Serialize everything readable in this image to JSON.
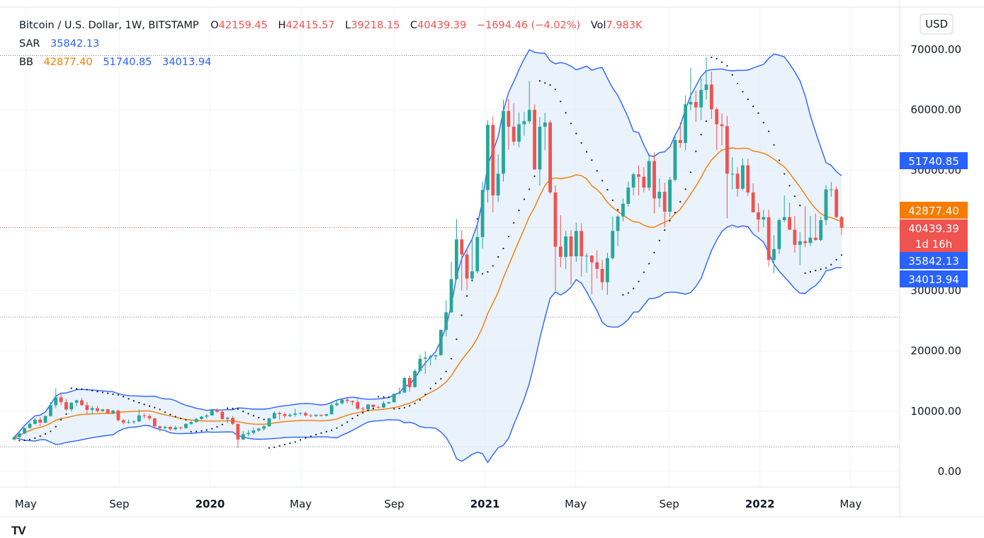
{
  "chart_data": {
    "type": "candlestick",
    "title": "Bitcoin / U.S. Dollar, 1W, BITSTAMP",
    "currency_button": "USD",
    "ohlc_header": {
      "o_label": "O",
      "o": "42159.45",
      "h_label": "H",
      "h": "42415.57",
      "l_label": "L",
      "l": "39218.15",
      "c_label": "C",
      "c": "40439.39",
      "change": "−1694.46 (−4.02%)",
      "vol_label": "Vol",
      "vol": "7.983K"
    },
    "indicators": {
      "sar": {
        "label": "SAR",
        "value": "35842.13"
      },
      "bb": {
        "label": "BB",
        "basis": "42877.40",
        "upper": "51740.85",
        "lower": "34013.94"
      }
    },
    "y_axis": {
      "min": -3000,
      "max": 76000,
      "ticks": [
        0,
        10000,
        20000,
        30000,
        40000,
        50000,
        60000,
        70000
      ],
      "tick_labels": [
        "0.00",
        "10000.00",
        "20000.00",
        "30000.00",
        "40000.00",
        "50000.00",
        "60000.00",
        "70000.00"
      ]
    },
    "x_axis": {
      "start": 2019.28,
      "end": 2022.4,
      "ticks": [
        {
          "x": 2019.33,
          "label": "May",
          "bold": false
        },
        {
          "x": 2019.67,
          "label": "Sep",
          "bold": false
        },
        {
          "x": 2020.0,
          "label": "2020",
          "bold": true
        },
        {
          "x": 2020.33,
          "label": "May",
          "bold": false
        },
        {
          "x": 2020.67,
          "label": "Sep",
          "bold": false
        },
        {
          "x": 2021.0,
          "label": "2021",
          "bold": true
        },
        {
          "x": 2021.33,
          "label": "May",
          "bold": false
        },
        {
          "x": 2021.67,
          "label": "Sep",
          "bold": false
        },
        {
          "x": 2022.0,
          "label": "2022",
          "bold": true
        },
        {
          "x": 2022.33,
          "label": "May",
          "bold": false
        }
      ]
    },
    "price_tags": [
      {
        "value": 51740.85,
        "label": "51740.85",
        "sub": "",
        "color": "#2962ff"
      },
      {
        "value": 42877.4,
        "label": "42877.40",
        "sub": "",
        "color": "#f57c00"
      },
      {
        "value": 40439.39,
        "label": "40439.39",
        "sub": "1d 16h",
        "color": "#ef5350"
      },
      {
        "value": 35842.13,
        "label": "35842.13",
        "sub": "",
        "color": "#2962ff"
      },
      {
        "value": 34013.94,
        "label": "34013.94",
        "sub": "",
        "color": "#2962ff"
      }
    ],
    "reference_lines": [
      {
        "value": 69000,
        "color": "#787b86"
      },
      {
        "value": 40439.39,
        "color": "#ef5350"
      },
      {
        "value": 25600,
        "color": "#787b86"
      },
      {
        "value": 4100,
        "color": "#787b86"
      }
    ],
    "colors": {
      "up": "#26a69a",
      "down": "#ef5350",
      "bb_basis": "#f57c00",
      "bb_band": "#2962ff",
      "bb_fill": "#e3eef9",
      "sar": "#131722",
      "grid": "#f0f3fa",
      "price_line": "#ef5350"
    },
    "candles_weekly": [
      [
        5300,
        5800,
        5100,
        5700
      ],
      [
        5700,
        6400,
        5600,
        6300
      ],
      [
        6300,
        7300,
        6200,
        7200
      ],
      [
        7200,
        8200,
        7100,
        7900
      ],
      [
        7900,
        8800,
        7800,
        8600
      ],
      [
        8600,
        9000,
        7500,
        8100
      ],
      [
        8100,
        9300,
        8000,
        9200
      ],
      [
        9200,
        11500,
        9100,
        11000
      ],
      [
        11000,
        13800,
        10500,
        12300
      ],
      [
        12300,
        13000,
        11000,
        11500
      ],
      [
        11500,
        12000,
        10000,
        10300
      ],
      [
        10300,
        11500,
        10000,
        11400
      ],
      [
        11400,
        11900,
        10800,
        11800
      ],
      [
        11800,
        12200,
        10900,
        11000
      ],
      [
        11000,
        11500,
        9500,
        10200
      ],
      [
        10200,
        10900,
        9500,
        10500
      ],
      [
        10500,
        10900,
        9800,
        10000
      ],
      [
        10000,
        10400,
        9900,
        10300
      ],
      [
        10300,
        10400,
        9600,
        9700
      ],
      [
        9700,
        10200,
        9500,
        10100
      ],
      [
        10100,
        10300,
        8300,
        8500
      ],
      [
        8500,
        8700,
        7800,
        8100
      ],
      [
        8100,
        8600,
        7900,
        8200
      ],
      [
        8200,
        8500,
        7900,
        8300
      ],
      [
        8300,
        10300,
        8200,
        9300
      ],
      [
        9300,
        9600,
        8800,
        9200
      ],
      [
        9200,
        9500,
        8500,
        8800
      ],
      [
        8800,
        8900,
        7300,
        7500
      ],
      [
        7500,
        7600,
        6600,
        7200
      ],
      [
        7200,
        7600,
        7000,
        7400
      ],
      [
        7400,
        7500,
        6800,
        7000
      ],
      [
        7000,
        7600,
        6800,
        7300
      ],
      [
        7300,
        7500,
        6900,
        7200
      ],
      [
        7200,
        8000,
        7100,
        7900
      ],
      [
        7900,
        8400,
        7700,
        8200
      ],
      [
        8200,
        8900,
        8100,
        8700
      ],
      [
        8700,
        9200,
        8600,
        9100
      ],
      [
        9100,
        9500,
        8800,
        9300
      ],
      [
        9300,
        10400,
        9200,
        10200
      ],
      [
        10200,
        10500,
        9700,
        9900
      ],
      [
        9900,
        10200,
        8600,
        8700
      ],
      [
        8700,
        9100,
        8000,
        8900
      ],
      [
        8900,
        9200,
        7700,
        7900
      ],
      [
        7900,
        8000,
        3900,
        5300
      ],
      [
        5300,
        6700,
        5200,
        6200
      ],
      [
        6200,
        6900,
        5800,
        6400
      ],
      [
        6400,
        7300,
        6100,
        6800
      ],
      [
        6800,
        7300,
        6600,
        7100
      ],
      [
        7100,
        7700,
        6800,
        7500
      ],
      [
        7500,
        8900,
        7400,
        8800
      ],
      [
        8800,
        10000,
        8700,
        9700
      ],
      [
        9700,
        9900,
        8600,
        9500
      ],
      [
        9500,
        9800,
        8800,
        9200
      ],
      [
        9200,
        9700,
        9000,
        9400
      ],
      [
        9400,
        10400,
        9100,
        9600
      ],
      [
        9600,
        9800,
        9300,
        9700
      ],
      [
        9700,
        9900,
        9100,
        9300
      ],
      [
        9300,
        9500,
        9000,
        9200
      ],
      [
        9200,
        9500,
        9000,
        9400
      ],
      [
        9400,
        9400,
        9100,
        9250
      ],
      [
        9250,
        9600,
        9150,
        9500
      ],
      [
        9500,
        11400,
        9400,
        11000
      ],
      [
        11000,
        11800,
        10800,
        11300
      ],
      [
        11300,
        12100,
        11100,
        11900
      ],
      [
        11900,
        12400,
        11300,
        11700
      ],
      [
        11700,
        11800,
        11000,
        11500
      ],
      [
        11500,
        12000,
        10200,
        10400
      ],
      [
        10400,
        10700,
        9900,
        10300
      ],
      [
        10300,
        11200,
        10200,
        11100
      ],
      [
        11100,
        11000,
        10500,
        10700
      ],
      [
        10700,
        10900,
        10400,
        10600
      ],
      [
        10600,
        11700,
        10500,
        11300
      ],
      [
        11300,
        11600,
        11200,
        11500
      ],
      [
        11500,
        12900,
        11400,
        12900
      ],
      [
        12900,
        13900,
        12800,
        13100
      ],
      [
        13100,
        15700,
        13000,
        15500
      ],
      [
        15500,
        15900,
        13200,
        14000
      ],
      [
        14000,
        17000,
        13900,
        16700
      ],
      [
        16700,
        19400,
        16500,
        18700
      ],
      [
        18700,
        19900,
        16200,
        18900
      ],
      [
        18900,
        19400,
        17600,
        19100
      ],
      [
        19100,
        19300,
        18500,
        19300
      ],
      [
        19300,
        23000,
        19200,
        23500
      ],
      [
        23500,
        28400,
        22400,
        26400
      ],
      [
        26400,
        34800,
        26300,
        31900
      ],
      [
        31900,
        41900,
        31800,
        38500
      ],
      [
        38500,
        40000,
        30000,
        36000
      ],
      [
        36000,
        37000,
        30100,
        32000
      ],
      [
        32000,
        38600,
        31800,
        33200
      ],
      [
        33200,
        40800,
        32800,
        38900
      ],
      [
        38900,
        48100,
        37000,
        46700
      ],
      [
        46700,
        58300,
        44600,
        57500
      ],
      [
        57500,
        58900,
        43000,
        45800
      ],
      [
        45800,
        52600,
        44700,
        49400
      ],
      [
        49400,
        61700,
        48100,
        59800
      ],
      [
        59800,
        61800,
        53400,
        57200
      ],
      [
        57200,
        61100,
        54100,
        54700
      ],
      [
        54700,
        59600,
        53800,
        57600
      ],
      [
        57600,
        59700,
        55700,
        58100
      ],
      [
        58100,
        64800,
        57700,
        60000
      ],
      [
        60000,
        60900,
        51500,
        50100
      ],
      [
        50100,
        58800,
        47400,
        57200
      ],
      [
        57200,
        59500,
        53300,
        57900
      ],
      [
        57900,
        58300,
        46000,
        46300
      ],
      [
        46300,
        47500,
        30000,
        37300
      ],
      [
        37300,
        42500,
        33900,
        35600
      ],
      [
        35600,
        39900,
        33600,
        39000
      ],
      [
        39000,
        40000,
        31000,
        35700
      ],
      [
        35700,
        41300,
        34800,
        39900
      ],
      [
        39900,
        41200,
        32300,
        35700
      ],
      [
        35700,
        36200,
        33000,
        35800
      ],
      [
        35800,
        35900,
        29400,
        34700
      ],
      [
        34700,
        36700,
        32000,
        33600
      ],
      [
        33600,
        35100,
        30100,
        31400
      ],
      [
        31400,
        36300,
        29300,
        35400
      ],
      [
        35400,
        42300,
        35100,
        39900
      ],
      [
        39900,
        42600,
        37400,
        42300
      ],
      [
        42300,
        45300,
        41500,
        44400
      ],
      [
        44400,
        48100,
        43900,
        47100
      ],
      [
        47100,
        49600,
        45800,
        49300
      ],
      [
        49300,
        50800,
        45800,
        48900
      ],
      [
        48900,
        50500,
        46300,
        47100
      ],
      [
        47100,
        52800,
        46600,
        51500
      ],
      [
        51500,
        52900,
        42800,
        45300
      ],
      [
        45300,
        48600,
        43800,
        46400
      ],
      [
        46400,
        47900,
        40500,
        43100
      ],
      [
        43100,
        48900,
        42200,
        48400
      ],
      [
        48400,
        55700,
        48100,
        55000
      ],
      [
        55000,
        57900,
        53700,
        54500
      ],
      [
        54500,
        62400,
        53300,
        60900
      ],
      [
        60900,
        67000,
        59900,
        61300
      ],
      [
        61300,
        63200,
        58000,
        60400
      ],
      [
        60400,
        65200,
        58300,
        63300
      ],
      [
        63300,
        68700,
        61700,
        64200
      ],
      [
        64200,
        66300,
        58500,
        60100
      ],
      [
        60100,
        60400,
        53300,
        57600
      ],
      [
        57600,
        59400,
        54100,
        57300
      ],
      [
        57300,
        59000,
        42000,
        49400
      ],
      [
        49400,
        52100,
        46800,
        49400
      ],
      [
        49400,
        50500,
        45600,
        46900
      ],
      [
        46900,
        51900,
        46600,
        50800
      ],
      [
        50800,
        51900,
        45700,
        46300
      ],
      [
        46300,
        47800,
        43700,
        43000
      ],
      [
        43000,
        44500,
        39700,
        41800
      ],
      [
        41800,
        43400,
        40500,
        42200
      ],
      [
        42200,
        43400,
        34000,
        35100
      ],
      [
        35100,
        39200,
        32900,
        36900
      ],
      [
        36900,
        42000,
        36100,
        41700
      ],
      [
        41700,
        45800,
        41400,
        42200
      ],
      [
        42200,
        44600,
        40100,
        40100
      ],
      [
        40100,
        42400,
        36300,
        37600
      ],
      [
        37600,
        39700,
        34300,
        38200
      ],
      [
        38200,
        44000,
        37200,
        37900
      ],
      [
        37900,
        42400,
        37400,
        38800
      ],
      [
        38800,
        42800,
        38300,
        38400
      ],
      [
        38400,
        42300,
        38200,
        41700
      ],
      [
        41700,
        47500,
        40900,
        46800
      ],
      [
        46800,
        48000,
        45600,
        46800
      ],
      [
        46800,
        47300,
        42100,
        42200
      ],
      [
        42200,
        42400,
        39200,
        40439
      ]
    ],
    "series_start_value_note": "candles_weekly values are [open, high, low, close] in USD; first candle week ~2019.29"
  }
}
